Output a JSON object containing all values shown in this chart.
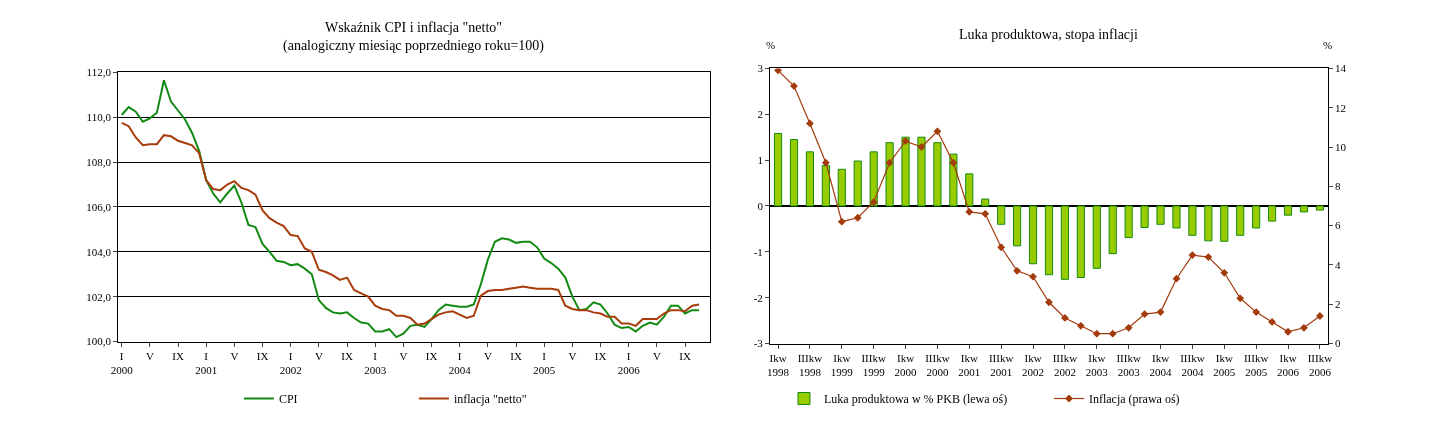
{
  "chart_data": [
    {
      "type": "line",
      "title": "Wskaźnik CPI i inflacja \"netto\"",
      "subtitle": "(analogiczny miesiąc poprzedniego roku=100)",
      "categories": [
        "I\n2000",
        null,
        null,
        null,
        "V",
        null,
        null,
        null,
        "IX",
        null,
        null,
        null,
        "I\n2001",
        null,
        null,
        null,
        "V",
        null,
        null,
        null,
        "IX",
        null,
        null,
        null,
        "I\n2002",
        null,
        null,
        null,
        "V",
        null,
        null,
        null,
        "IX",
        null,
        null,
        null,
        "I\n2003",
        null,
        null,
        null,
        "V",
        null,
        null,
        null,
        "IX",
        null,
        null,
        null,
        "I\n2004",
        null,
        null,
        null,
        "V",
        null,
        null,
        null,
        "IX",
        null,
        null,
        null,
        "I\n2005",
        null,
        null,
        null,
        "V",
        null,
        null,
        null,
        "IX",
        null,
        null,
        null,
        "I\n2006",
        null,
        null,
        null,
        "V",
        null,
        null,
        null,
        "IX",
        null,
        null,
        null
      ],
      "series": [
        {
          "name": "CPI",
          "color": "#138a13",
          "values": [
            110.1,
            110.45,
            110.25,
            109.8,
            109.95,
            110.2,
            111.65,
            110.7,
            110.3,
            109.9,
            109.3,
            108.5,
            107.2,
            106.6,
            106.2,
            106.6,
            106.95,
            106.2,
            105.2,
            105.1,
            104.35,
            104.0,
            103.6,
            103.55,
            103.4,
            103.45,
            103.25,
            103.0,
            101.85,
            101.5,
            101.3,
            101.25,
            101.3,
            101.05,
            100.85,
            100.8,
            100.45,
            100.45,
            100.55,
            100.2,
            100.35,
            100.7,
            100.75,
            100.65,
            101.0,
            101.4,
            101.65,
            101.6,
            101.55,
            101.55,
            101.65,
            102.55,
            103.65,
            104.45,
            104.6,
            104.55,
            104.4,
            104.45,
            104.45,
            104.2,
            103.7,
            103.5,
            103.25,
            102.85,
            102.0,
            101.4,
            101.45,
            101.75,
            101.65,
            101.25,
            100.75,
            100.6,
            100.65,
            100.45,
            100.7,
            100.85,
            100.75,
            101.1,
            101.6,
            101.6,
            101.25,
            101.4,
            101.4,
            null
          ]
        },
        {
          "name": "inflacja \"netto\"",
          "color": "#a83c0c",
          "values": [
            109.75,
            109.6,
            109.1,
            108.75,
            108.8,
            108.8,
            109.2,
            109.15,
            108.95,
            108.85,
            108.75,
            108.4,
            107.2,
            106.8,
            106.75,
            107.0,
            107.15,
            106.85,
            106.75,
            106.55,
            105.85,
            105.5,
            105.3,
            105.15,
            104.75,
            104.7,
            104.15,
            104.0,
            103.2,
            103.1,
            102.95,
            102.75,
            102.85,
            102.3,
            102.15,
            102.0,
            101.6,
            101.45,
            101.4,
            101.15,
            101.15,
            101.05,
            100.75,
            100.8,
            101.0,
            101.2,
            101.3,
            101.35,
            101.2,
            101.05,
            101.15,
            102.05,
            102.25,
            102.3,
            102.3,
            102.35,
            102.4,
            102.45,
            102.4,
            102.35,
            102.35,
            102.35,
            102.3,
            101.6,
            101.45,
            101.4,
            101.4,
            101.3,
            101.25,
            101.1,
            101.1,
            100.8,
            100.8,
            100.7,
            101.0,
            101.0,
            101.0,
            101.25,
            101.4,
            101.4,
            101.35,
            101.6,
            101.65,
            null
          ]
        }
      ],
      "ylim": [
        100,
        112
      ],
      "yticks": [
        {
          "value": 100,
          "label": "100,0"
        },
        {
          "value": 102,
          "label": "102,0"
        },
        {
          "value": 104,
          "label": "104,0"
        },
        {
          "value": 106,
          "label": "106,0"
        },
        {
          "value": 108,
          "label": "108,0"
        },
        {
          "value": 110,
          "label": "110,0"
        },
        {
          "value": 112,
          "label": "112,0"
        }
      ],
      "grid": "y",
      "legend": "bottom",
      "line_style": "solid",
      "marker": "none"
    },
    {
      "type": "bar",
      "title": "Luka produktowa, stopa inflacji",
      "categories": [
        "Ikw\n1998",
        null,
        "IIIkw\n1998",
        null,
        "Ikw\n1999",
        null,
        "IIIkw\n1999",
        null,
        "Ikw\n2000",
        null,
        "IIIkw\n2000",
        null,
        "Ikw\n2001",
        null,
        "IIIkw\n2001",
        null,
        "Ikw\n2002",
        null,
        "IIIkw\n2002",
        null,
        "Ikw\n2003",
        null,
        "IIIkw\n2003",
        null,
        "Ikw\n2004",
        null,
        "IIIkw\n2004",
        null,
        "Ikw\n2005",
        null,
        "IIIkw\n2005",
        null,
        "Ikw\n2006",
        null,
        "IIIkw\n2006"
      ],
      "series": [
        {
          "name": "Luka produktowa w % PKB (lewa oś)",
          "type": "bar",
          "color": "#99cc00",
          "values": [
            1.58,
            1.45,
            1.18,
            0.88,
            0.8,
            0.98,
            1.18,
            1.38,
            1.5,
            1.5,
            1.38,
            1.13,
            0.7,
            0.15,
            -0.4,
            -0.87,
            -1.26,
            -1.5,
            -1.6,
            -1.56,
            -1.36,
            -1.04,
            -0.69,
            -0.47,
            -0.4,
            -0.48,
            -0.64,
            -0.76,
            -0.77,
            -0.64,
            -0.48,
            -0.33,
            -0.2,
            -0.13,
            -0.09
          ]
        },
        {
          "name": "Inflacja (prawa oś)",
          "type": "line",
          "axis": "y2",
          "color": "#a33b0c",
          "marker": "diamond",
          "values": [
            13.9,
            13.1,
            11.2,
            9.2,
            6.2,
            6.4,
            7.2,
            9.2,
            10.3,
            10.0,
            10.8,
            9.2,
            6.7,
            6.6,
            4.9,
            3.7,
            3.4,
            2.1,
            1.3,
            0.9,
            0.5,
            0.5,
            0.8,
            1.5,
            1.6,
            3.3,
            4.5,
            4.4,
            3.6,
            2.3,
            1.6,
            1.1,
            0.6,
            0.8,
            1.4
          ]
        }
      ],
      "ylim": [
        -3,
        3
      ],
      "yticks": [
        -3,
        -2,
        -1,
        0,
        1,
        2,
        3
      ],
      "y2lim": [
        0,
        14
      ],
      "y2ticks": [
        0,
        2,
        4,
        6,
        8,
        10,
        12,
        14
      ],
      "annotations": [
        "%",
        "%"
      ],
      "legend": "bottom"
    }
  ]
}
